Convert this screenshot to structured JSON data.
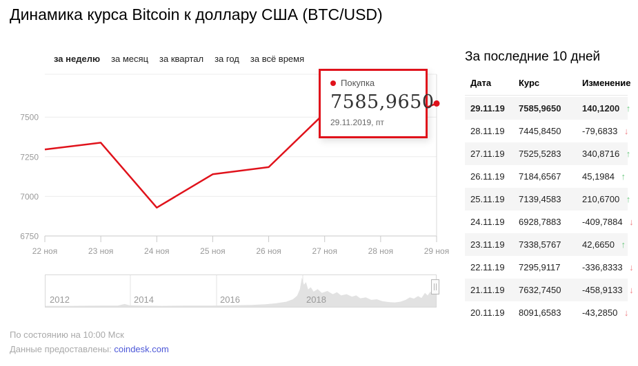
{
  "page": {
    "title": "Динамика курса Bitcoin к доллару США (BTC/USD)"
  },
  "tabs": [
    {
      "label": "за неделю",
      "active": true
    },
    {
      "label": "за месяц",
      "active": false
    },
    {
      "label": "за квартал",
      "active": false
    },
    {
      "label": "за год",
      "active": false
    },
    {
      "label": "за всё время",
      "active": false
    }
  ],
  "chart_data": [
    {
      "type": "line",
      "title": "BTC/USD за неделю",
      "x": [
        "22 ноя",
        "23 ноя",
        "24 ноя",
        "25 ноя",
        "26 ноя",
        "27 ноя",
        "28 ноя",
        "29 ноя"
      ],
      "series": [
        {
          "name": "Покупка",
          "values": [
            7295.9117,
            7338.5767,
            6928.7883,
            7139.4583,
            7184.6567,
            7525.5283,
            7445.845,
            7585.965
          ]
        }
      ],
      "yticks": [
        6750,
        7000,
        7250,
        7500
      ],
      "ylim": [
        6750,
        7770
      ],
      "grid": true,
      "line_color": "#e0121b",
      "legend_position": "tooltip"
    },
    {
      "type": "area",
      "title": "Весь период (мини-карта)",
      "x_labels": [
        "2012",
        "2014",
        "2016",
        "2018"
      ],
      "note": "профиль истории курса BTC, нормированные высоты 0-100",
      "profile_points": [
        [
          0,
          3
        ],
        [
          40,
          3
        ],
        [
          80,
          4
        ],
        [
          105,
          4
        ],
        [
          115,
          9
        ],
        [
          122,
          5
        ],
        [
          140,
          4
        ],
        [
          170,
          3
        ],
        [
          200,
          4
        ],
        [
          240,
          4
        ],
        [
          270,
          5
        ],
        [
          300,
          6
        ],
        [
          320,
          8
        ],
        [
          335,
          11
        ],
        [
          350,
          16
        ],
        [
          360,
          24
        ],
        [
          366,
          35
        ],
        [
          370,
          55
        ],
        [
          373,
          92
        ],
        [
          376,
          70
        ],
        [
          379,
          78
        ],
        [
          382,
          55
        ],
        [
          386,
          62
        ],
        [
          390,
          48
        ],
        [
          396,
          56
        ],
        [
          402,
          44
        ],
        [
          410,
          50
        ],
        [
          418,
          40
        ],
        [
          424,
          46
        ],
        [
          430,
          36
        ],
        [
          438,
          40
        ],
        [
          446,
          32
        ],
        [
          452,
          36
        ],
        [
          458,
          27
        ],
        [
          466,
          30
        ],
        [
          474,
          22
        ],
        [
          482,
          24
        ],
        [
          490,
          18
        ],
        [
          500,
          15
        ],
        [
          508,
          14
        ],
        [
          516,
          16
        ],
        [
          524,
          22
        ],
        [
          530,
          30
        ],
        [
          536,
          26
        ],
        [
          542,
          34
        ],
        [
          547,
          28
        ],
        [
          552,
          44
        ],
        [
          556,
          36
        ],
        [
          560,
          48
        ],
        [
          563,
          40
        ],
        [
          566,
          46
        ],
        [
          568,
          38
        ]
      ],
      "fill_color": "#e2e2e2"
    }
  ],
  "tooltip": {
    "label": "Покупка",
    "value": "7585,9650",
    "date": "29.11.2019, пт"
  },
  "table": {
    "heading": "За последние 10 дней",
    "columns": [
      "Дата",
      "Курс",
      "Изменение"
    ],
    "rows": [
      {
        "date": "29.11.19",
        "rate": "7585,9650",
        "change": "140,1200",
        "dir": "up",
        "bold": true
      },
      {
        "date": "28.11.19",
        "rate": "7445,8450",
        "change": "-79,6833",
        "dir": "down",
        "bold": false
      },
      {
        "date": "27.11.19",
        "rate": "7525,5283",
        "change": "340,8716",
        "dir": "up",
        "bold": false
      },
      {
        "date": "26.11.19",
        "rate": "7184,6567",
        "change": "45,1984",
        "dir": "up",
        "bold": false
      },
      {
        "date": "25.11.19",
        "rate": "7139,4583",
        "change": "210,6700",
        "dir": "up",
        "bold": false
      },
      {
        "date": "24.11.19",
        "rate": "6928,7883",
        "change": "-409,7884",
        "dir": "down",
        "bold": false
      },
      {
        "date": "23.11.19",
        "rate": "7338,5767",
        "change": "42,6650",
        "dir": "up",
        "bold": false
      },
      {
        "date": "22.11.19",
        "rate": "7295,9117",
        "change": "-336,8333",
        "dir": "down",
        "bold": false
      },
      {
        "date": "21.11.19",
        "rate": "7632,7450",
        "change": "-458,9133",
        "dir": "down",
        "bold": false
      },
      {
        "date": "20.11.19",
        "rate": "8091,6583",
        "change": "-43,2850",
        "dir": "down",
        "bold": false
      }
    ]
  },
  "footer": {
    "as_of": "По состоянию на 10:00 Мск",
    "source_label": "Данные предоставлены:",
    "source_link": "coindesk.com"
  },
  "icons": {
    "arrow_up": "↑",
    "arrow_down": "↓"
  },
  "colors": {
    "line_red": "#e0121b",
    "arrow_green": "#6cc77f",
    "arrow_red": "#ef7f84",
    "grid": "#ececec",
    "axis": "#c9c9c9",
    "stripe": "#f5f5f5",
    "link_blue": "#4d58d8"
  }
}
